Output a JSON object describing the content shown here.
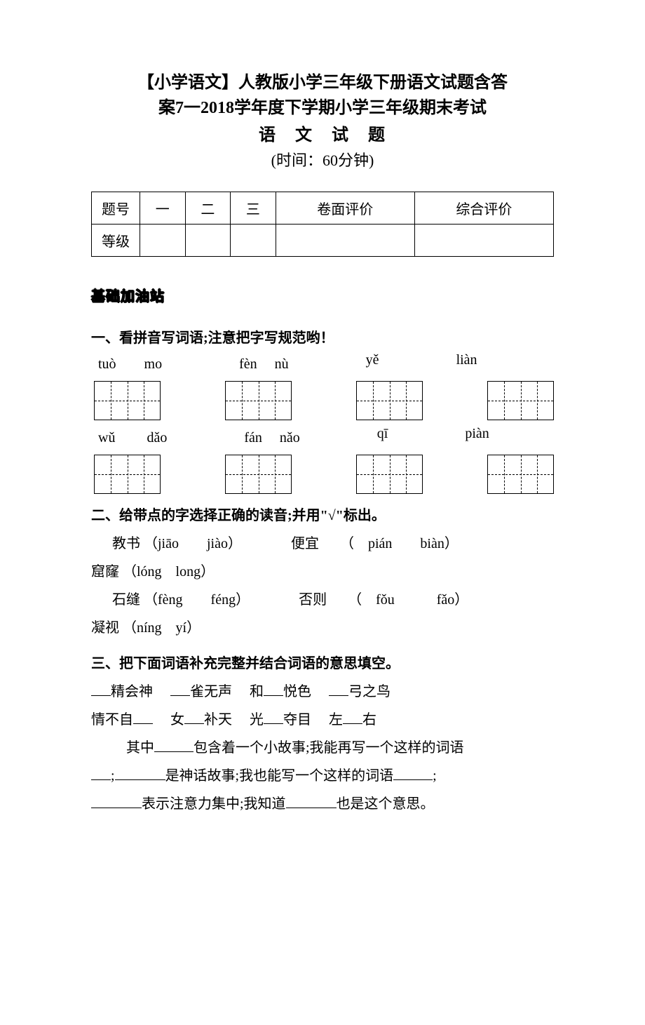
{
  "header": {
    "title_l1": "【小学语文】人教版小学三年级下册语文试题含答",
    "title_l2": "案7一2018学年度下学期小学三年级期末考试",
    "subtitle": "语　文　试　题",
    "duration": "(时间：60分钟)"
  },
  "score_table": {
    "headers": [
      "题号",
      "一",
      "二",
      "三",
      "卷面评价",
      "综合评价"
    ],
    "row_label": "等级",
    "col_widths": [
      "60px",
      "110px",
      "110px",
      "110px",
      "130px",
      "130px"
    ]
  },
  "section_badge": "基础加油站",
  "q1": {
    "heading": "一、看拼音写词语;注意把字写规范哟！",
    "row1": [
      "tuò　　mo",
      "fèn　 nù",
      "yě",
      "liàn"
    ],
    "row2": [
      "wǔ　　 dǎo",
      "fán　 nǎo",
      "qī",
      "piàn"
    ]
  },
  "q2": {
    "heading": "二、给带点的字选择正确的读音;并用\"√\"标出。",
    "items": [
      {
        "word": "教书",
        "opts": "（jiāo　　jiào）"
      },
      {
        "word": "便宜",
        "opts": "（　pián　　biàn）"
      },
      {
        "word": "窟窿",
        "opts": "（lóng　long）"
      },
      {
        "word": "石缝",
        "opts": "（fèng　　féng）"
      },
      {
        "word": "否则",
        "opts": "（　fǒu　　　fǎo）"
      },
      {
        "word": "凝视",
        "opts": "（níng　yí）"
      }
    ]
  },
  "q3": {
    "heading": "三、把下面词语补充完整并结合词语的意思填空。",
    "line1_parts": [
      "精会神",
      "雀无声",
      "和",
      "悦色",
      "弓之鸟"
    ],
    "line2_parts": [
      "情不自",
      "女",
      "补天",
      "光",
      "夺目",
      "左",
      "右"
    ],
    "para": {
      "p1_a": "其中",
      "p1_b": "包含着一个小故事;我能再写一个这样的词语",
      "p2_a": ";",
      "p2_b": "是神话故事;我也能写一个这样的词语",
      "p2_c": ";",
      "p3_a": "表示注意力集中;我知道",
      "p3_b": "也是这个意思。"
    }
  },
  "styles": {
    "background_color": "#ffffff",
    "text_color": "#000000",
    "title_fontsize": 24,
    "body_fontsize": 20,
    "table_border": "#000000"
  }
}
